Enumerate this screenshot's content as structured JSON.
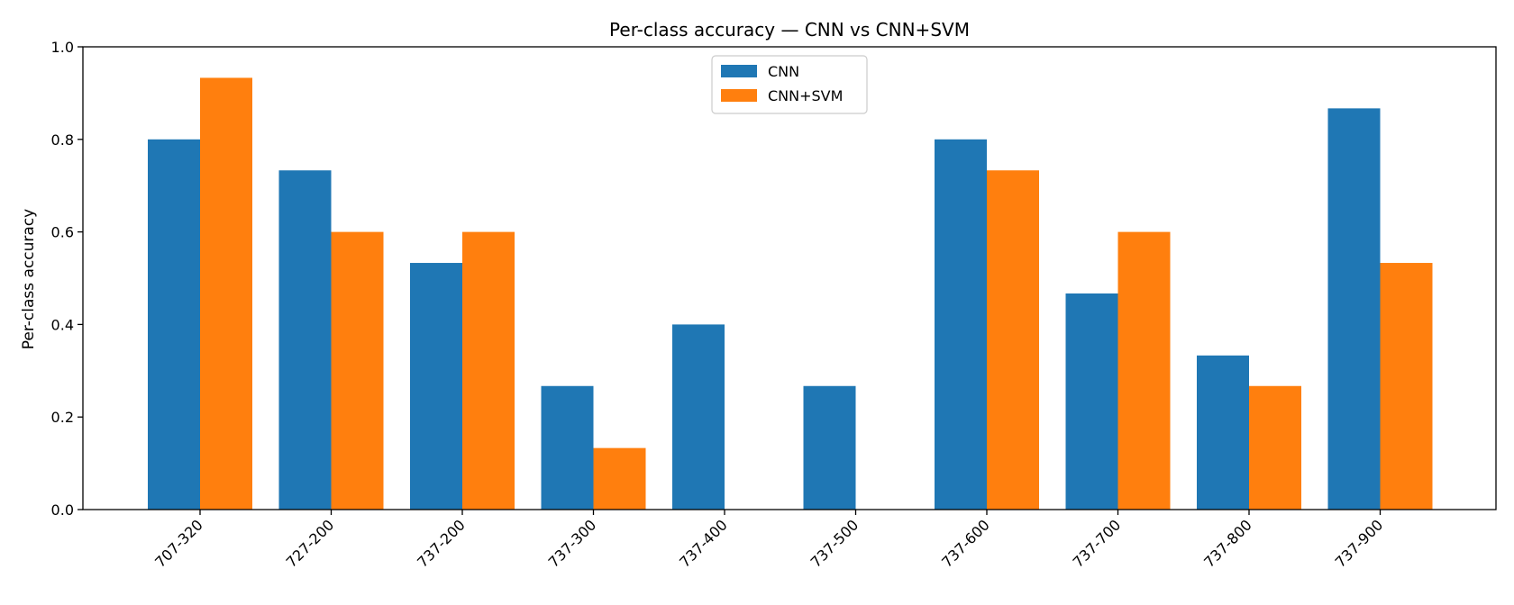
{
  "chart_data": {
    "type": "bar",
    "title": "Per-class accuracy — CNN vs CNN+SVM",
    "xlabel": "",
    "ylabel": "Per-class accuracy",
    "ylim": [
      0,
      1.0
    ],
    "yticks": [
      "0.0",
      "0.2",
      "0.4",
      "0.6",
      "0.8",
      "1.0"
    ],
    "categories": [
      "707-320",
      "727-200",
      "737-200",
      "737-300",
      "737-400",
      "737-500",
      "737-600",
      "737-700",
      "737-800",
      "737-900"
    ],
    "series": [
      {
        "name": "CNN",
        "color": "#1f77b4",
        "values": [
          0.8,
          0.733,
          0.533,
          0.267,
          0.4,
          0.267,
          0.8,
          0.467,
          0.333,
          0.867
        ]
      },
      {
        "name": "CNN+SVM",
        "color": "#ff7f0e",
        "values": [
          0.933,
          0.6,
          0.6,
          0.133,
          0.0,
          0.0,
          0.733,
          0.6,
          0.267,
          0.533
        ]
      }
    ],
    "grid": false,
    "legend": "top-center"
  }
}
